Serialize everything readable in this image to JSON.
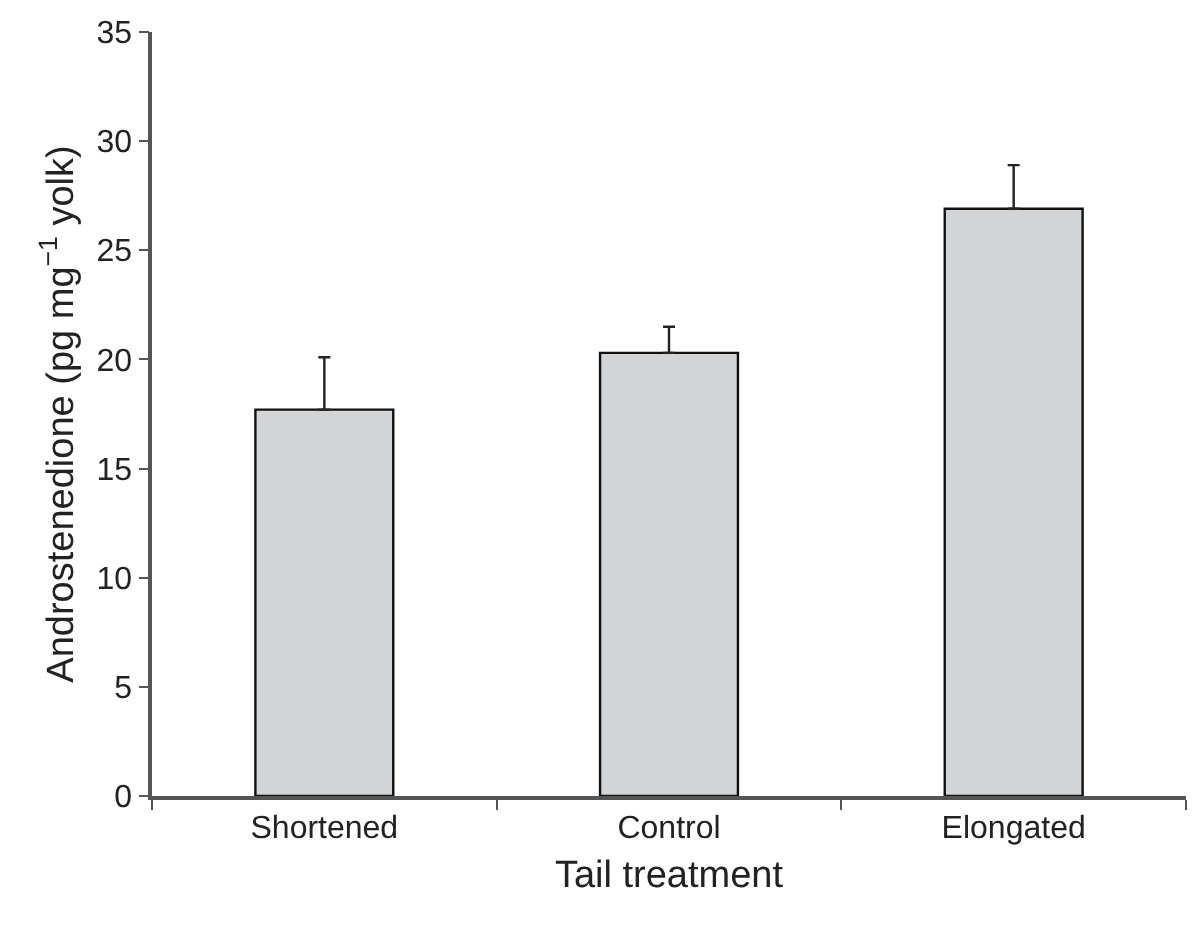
{
  "chart_data": {
    "type": "bar",
    "xlabel": "Tail treatment",
    "ylabel": "Androstenedione (pg mg$^{−1}$ yolk)",
    "categories": [
      "Shortened",
      "Control",
      "Elongated"
    ],
    "values": [
      17.7,
      20.3,
      26.9
    ],
    "errors": [
      [
        17.7,
        20.1
      ],
      [
        20.3,
        21.5
      ],
      [
        26.9,
        28.9
      ]
    ],
    "color": "#d3d4d6",
    "ylim": [
      0,
      35
    ],
    "yticks": [
      0,
      5,
      10,
      15,
      20,
      25,
      30,
      35
    ],
    "grid": false
  }
}
